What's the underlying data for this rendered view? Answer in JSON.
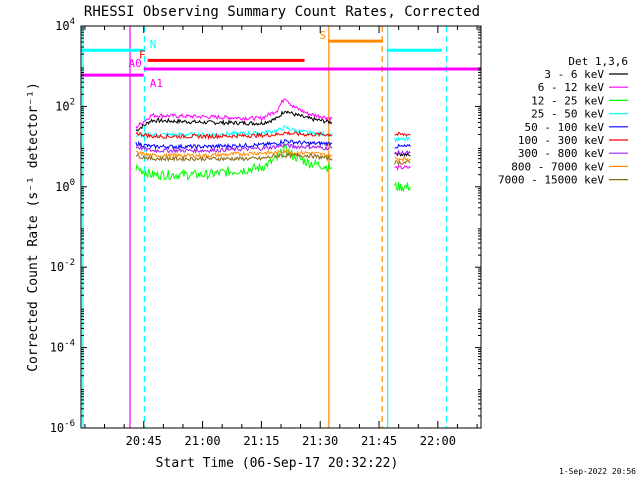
{
  "chart_data": {
    "type": "line",
    "title": "RHESSI Observing Summary Count Rates, Corrected",
    "xlabel": "Start Time (06-Sep-17 20:32:22)",
    "ylabel": "Corrected Count Rate (s⁻¹ detector⁻¹)",
    "yscale": "log",
    "ylim": [
      1e-06,
      10000
    ],
    "xlim_minutes": [
      -2,
      100
    ],
    "x_ticks": [
      {
        "label": "20:45",
        "t": 14
      },
      {
        "label": "21:00",
        "t": 29
      },
      {
        "label": "21:15",
        "t": 44
      },
      {
        "label": "21:30",
        "t": 59
      },
      {
        "label": "21:45",
        "t": 74
      },
      {
        "label": "22:00",
        "t": 89
      }
    ],
    "y_ticks": [
      {
        "base": "10",
        "exp": "4",
        "value": 10000
      },
      {
        "base": "10",
        "exp": "2",
        "value": 100
      },
      {
        "base": "10",
        "exp": "0",
        "value": 1
      },
      {
        "base": "10",
        "exp": "-2",
        "value": 0.01
      },
      {
        "base": "10",
        "exp": "-4",
        "value": 0.0001
      },
      {
        "base": "10",
        "exp": "-6",
        "value": 1e-06
      }
    ],
    "legend_title": "Det 1,3,6",
    "legend_position": "right",
    "series": [
      {
        "name": "3 - 6 keV",
        "color": "#000000",
        "segments": [
          [
            [
              12,
              25
            ],
            [
              16,
              45
            ],
            [
              30,
              40
            ],
            [
              44,
              38
            ],
            [
              48,
              50
            ],
            [
              50,
              80
            ],
            [
              52,
              65
            ],
            [
              56,
              50
            ],
            [
              62,
              40
            ]
          ],
          [
            [
              78,
              7
            ],
            [
              82,
              6
            ]
          ]
        ]
      },
      {
        "name": "6 - 12 keV",
        "color": "#ff00ff",
        "segments": [
          [
            [
              12,
              30
            ],
            [
              16,
              60
            ],
            [
              30,
              55
            ],
            [
              44,
              50
            ],
            [
              48,
              80
            ],
            [
              50,
              170
            ],
            [
              52,
              100
            ],
            [
              56,
              65
            ],
            [
              62,
              50
            ]
          ],
          [
            [
              78,
              3
            ],
            [
              82,
              3
            ]
          ]
        ]
      },
      {
        "name": "12 - 25 keV",
        "color": "#00ff00",
        "segments": [
          [
            [
              12,
              3
            ],
            [
              16,
              2
            ],
            [
              30,
              2
            ],
            [
              44,
              3
            ],
            [
              48,
              5
            ],
            [
              50,
              9
            ],
            [
              52,
              6
            ],
            [
              56,
              4
            ],
            [
              62,
              3
            ]
          ],
          [
            [
              78,
              1
            ],
            [
              82,
              1
            ]
          ]
        ]
      },
      {
        "name": "25 - 50 keV",
        "color": "#00ffff",
        "segments": [
          [
            [
              12,
              18
            ],
            [
              16,
              20
            ],
            [
              30,
              20
            ],
            [
              44,
              22
            ],
            [
              48,
              25
            ],
            [
              50,
              30
            ],
            [
              52,
              26
            ],
            [
              56,
              22
            ],
            [
              62,
              20
            ]
          ],
          [
            [
              78,
              15
            ],
            [
              82,
              15
            ]
          ]
        ]
      },
      {
        "name": "50 - 100 keV",
        "color": "#0000ff",
        "segments": [
          [
            [
              12,
              12
            ],
            [
              16,
              10
            ],
            [
              30,
              10
            ],
            [
              44,
              11
            ],
            [
              48,
              12
            ],
            [
              50,
              14
            ],
            [
              52,
              13
            ],
            [
              56,
              12
            ],
            [
              62,
              12
            ]
          ],
          [
            [
              78,
              10
            ],
            [
              82,
              10
            ]
          ]
        ]
      },
      {
        "name": "100 - 300 keV",
        "color": "#ff0000",
        "segments": [
          [
            [
              12,
              22
            ],
            [
              16,
              18
            ],
            [
              30,
              18
            ],
            [
              44,
              19
            ],
            [
              48,
              20
            ],
            [
              50,
              22
            ],
            [
              52,
              21
            ],
            [
              56,
              20
            ],
            [
              62,
              20
            ]
          ],
          [
            [
              78,
              20
            ],
            [
              82,
              20
            ]
          ]
        ]
      },
      {
        "name": "300 - 800 keV",
        "color": "#a020f0",
        "segments": [
          [
            [
              12,
              10
            ],
            [
              16,
              8
            ],
            [
              30,
              8
            ],
            [
              44,
              9
            ],
            [
              48,
              10
            ],
            [
              50,
              11
            ],
            [
              52,
              10
            ],
            [
              56,
              10
            ],
            [
              62,
              9
            ]
          ],
          [
            [
              78,
              7
            ],
            [
              82,
              7
            ]
          ]
        ]
      },
      {
        "name": "800 - 7000 keV",
        "color": "#ff8c00",
        "segments": [
          [
            [
              12,
              7
            ],
            [
              16,
              6
            ],
            [
              30,
              6
            ],
            [
              44,
              7
            ],
            [
              48,
              7
            ],
            [
              50,
              8
            ],
            [
              52,
              7
            ],
            [
              56,
              7
            ],
            [
              62,
              6
            ]
          ],
          [
            [
              78,
              5
            ],
            [
              82,
              5
            ]
          ]
        ]
      },
      {
        "name": "7000 - 15000 keV",
        "color": "#8b6914",
        "segments": [
          [
            [
              12,
              6
            ],
            [
              16,
              5
            ],
            [
              30,
              5
            ],
            [
              44,
              5
            ],
            [
              48,
              6
            ],
            [
              50,
              6
            ],
            [
              52,
              6
            ],
            [
              56,
              6
            ],
            [
              62,
              5
            ]
          ],
          [
            [
              78,
              4
            ],
            [
              82,
              4
            ]
          ]
        ]
      }
    ],
    "state_bars": [
      {
        "label": "N",
        "color": "#00ffff",
        "value": 2500,
        "segments": [
          [
            -2,
            14
          ],
          [
            76,
            90
          ]
        ]
      },
      {
        "label": "F",
        "color": "#ff0000",
        "value": 1400,
        "segments": [
          [
            15,
            55
          ]
        ]
      },
      {
        "label": "A0",
        "color": "#ff00ff",
        "value": 850,
        "segments": [
          [
            14,
            100
          ]
        ]
      },
      {
        "label": "A1",
        "color": "#ff00ff",
        "value": 600,
        "segments": [
          [
            -2,
            14
          ]
        ]
      },
      {
        "label": "S",
        "color": "#ff8c00",
        "value": 4200,
        "segments": [
          [
            61,
            75
          ]
        ]
      }
    ],
    "vlines": [
      {
        "t": -1.5,
        "color": "#00ffff",
        "style": "solid"
      },
      {
        "t": 10.5,
        "color": "#ff00ff",
        "style": "solid"
      },
      {
        "t": 14.2,
        "color": "#00ffff",
        "style": "dashed"
      },
      {
        "t": 61.2,
        "color": "#ff8c00",
        "style": "solid"
      },
      {
        "t": 74.8,
        "color": "#ff8c00",
        "style": "dashed"
      },
      {
        "t": 76.2,
        "color": "#00ffff",
        "style": "solid"
      },
      {
        "t": 91.2,
        "color": "#00ffff",
        "style": "dashed"
      }
    ]
  },
  "footer": {
    "generated": "1-Sep-2022 20:56"
  }
}
